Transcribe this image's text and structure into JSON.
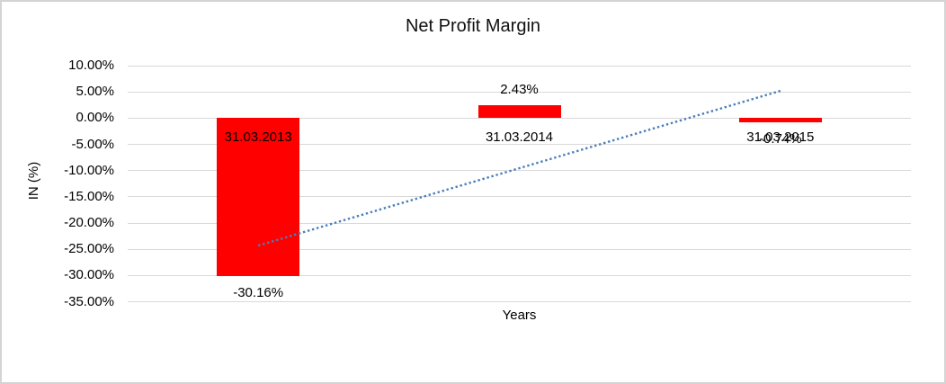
{
  "chart_data": {
    "type": "bar",
    "title": "Net Profit Margin",
    "xlabel": "Years",
    "ylabel": "IN (%)",
    "categories": [
      "31.03.2013",
      "31.03.2014",
      "31.03.2015"
    ],
    "values": [
      -30.16,
      2.43,
      -0.74
    ],
    "data_labels": [
      "-30.16%",
      "2.43%",
      "-0.74%"
    ],
    "ylim": [
      -35,
      10
    ],
    "ytick_step": 5,
    "ytick_labels": [
      "10.00%",
      "5.00%",
      "0.00%",
      "-5.00%",
      "-10.00%",
      "-15.00%",
      "-20.00%",
      "-25.00%",
      "-30.00%",
      "-35.00%"
    ],
    "grid": true,
    "legend": false,
    "bar_color": "#ff0000",
    "gridline_color": "#d9d9d9",
    "trendline": {
      "type": "linear",
      "style": "dotted",
      "color": "#4a7ebb",
      "y_start": -24.3,
      "y_end": 5.2
    }
  }
}
